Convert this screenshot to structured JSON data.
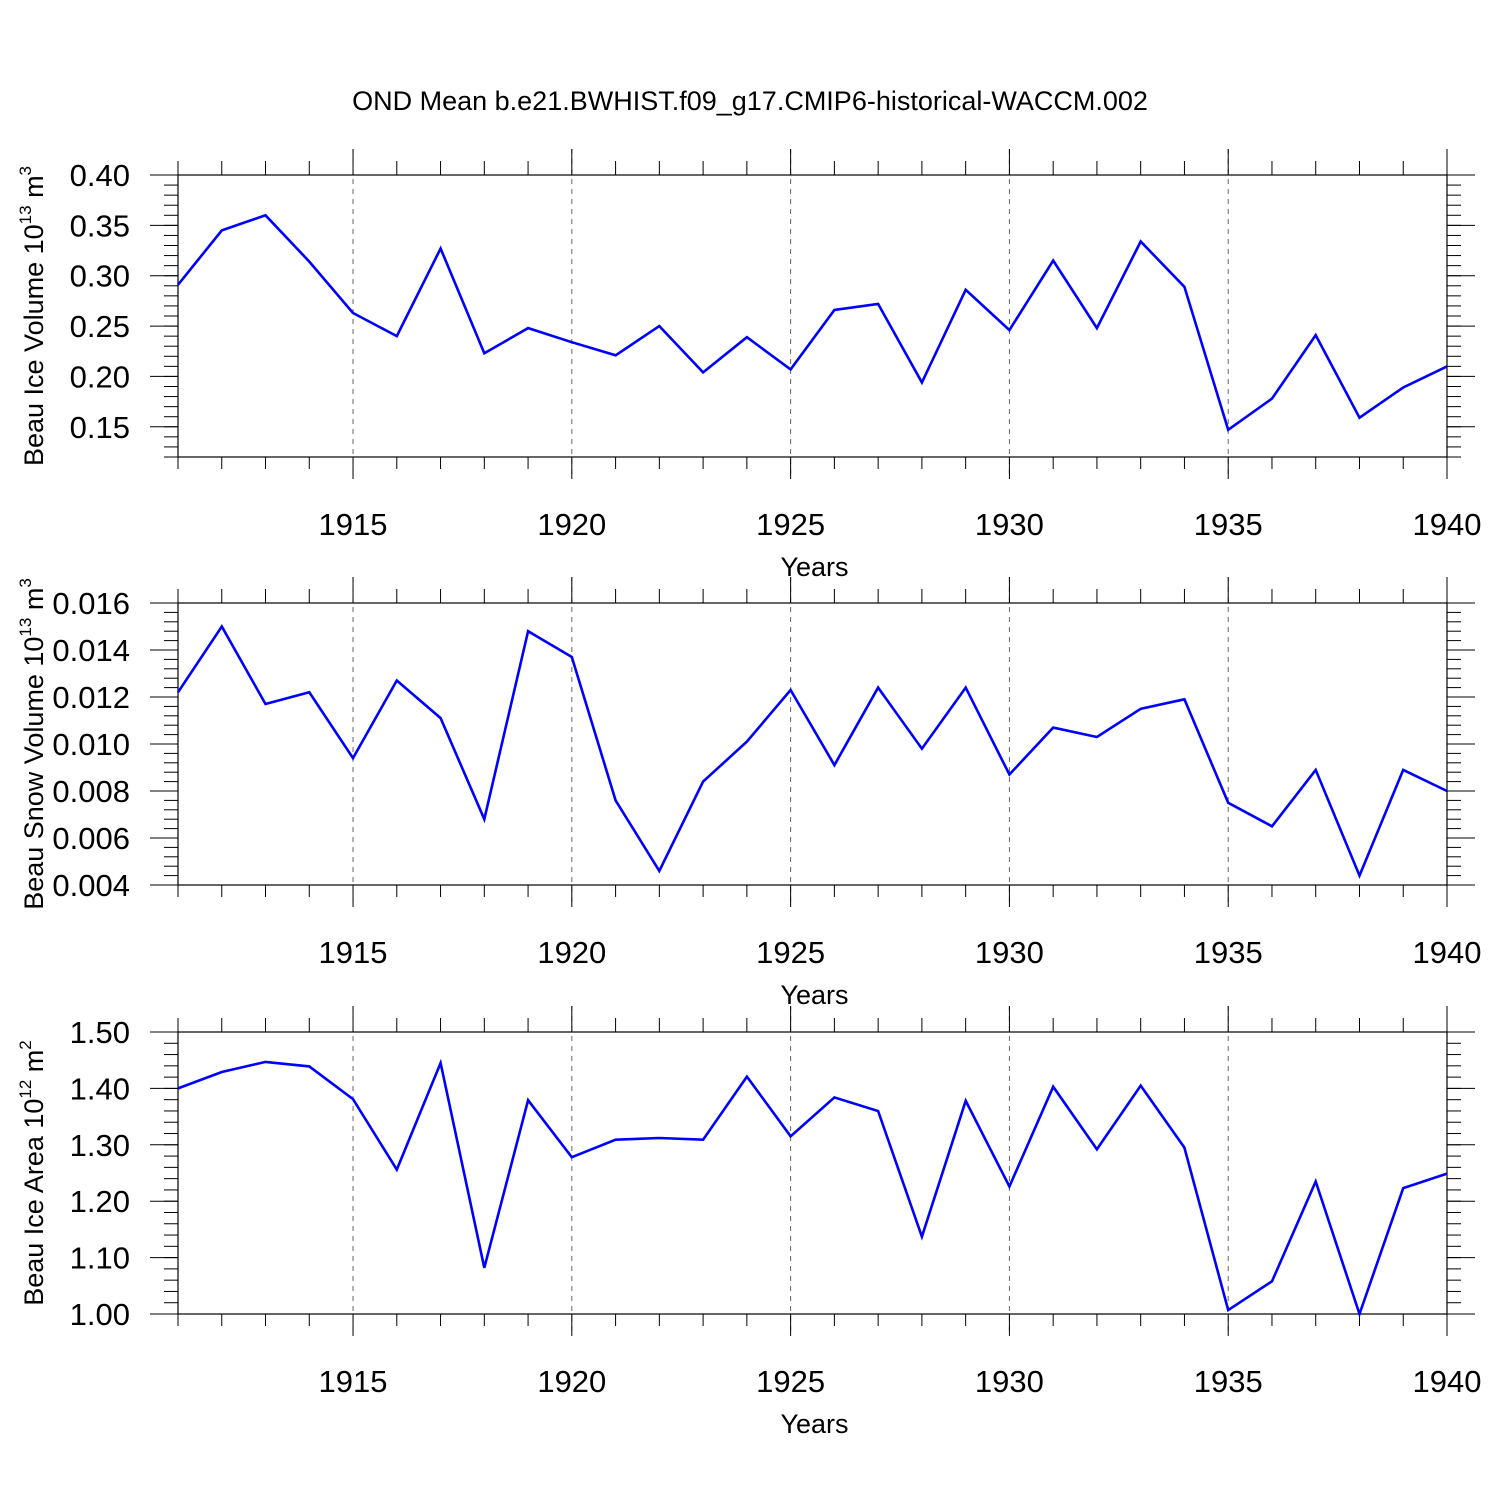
{
  "title": "OND Mean b.e21.BWHIST.f09_g17.CMIP6-historical-WACCM.002",
  "chart_data": [
    {
      "type": "line",
      "ylabel": {
        "base": "Beau Ice Volume 10",
        "exp": "13",
        "unit": " m",
        "unit_exp": "3"
      },
      "xlabel": "Years",
      "xlim": [
        1911,
        1940
      ],
      "ylim": [
        0.12,
        0.4
      ],
      "yticks": [
        "0.15",
        "0.20",
        "0.25",
        "0.30",
        "0.35",
        "0.40"
      ],
      "xticks": [
        "1915",
        "1920",
        "1925",
        "1930",
        "1935",
        "1940"
      ],
      "x": [
        1911,
        1912,
        1913,
        1914,
        1915,
        1916,
        1917,
        1918,
        1919,
        1920,
        1921,
        1922,
        1923,
        1924,
        1925,
        1926,
        1927,
        1928,
        1929,
        1930,
        1931,
        1932,
        1933,
        1934,
        1935,
        1936,
        1937,
        1938,
        1939,
        1940
      ],
      "series": [
        {
          "values": [
            0.291,
            0.345,
            0.36,
            0.314,
            0.263,
            0.24,
            0.327,
            0.223,
            0.248,
            0.234,
            0.221,
            0.25,
            0.204,
            0.239,
            0.207,
            0.266,
            0.272,
            0.194,
            0.286,
            0.246,
            0.315,
            0.248,
            0.334,
            0.289,
            0.147,
            0.178,
            0.241,
            0.159,
            0.189,
            0.21
          ],
          "color": "#0000ff"
        }
      ]
    },
    {
      "type": "line",
      "ylabel": {
        "base": "Beau Snow Volume 10",
        "exp": "13",
        "unit": " m",
        "unit_exp": "3"
      },
      "xlabel": "Years",
      "xlim": [
        1911,
        1940
      ],
      "ylim": [
        0.004,
        0.016
      ],
      "yticks": [
        "0.004",
        "0.006",
        "0.008",
        "0.010",
        "0.012",
        "0.014",
        "0.016"
      ],
      "xticks": [
        "1915",
        "1920",
        "1925",
        "1930",
        "1935",
        "1940"
      ],
      "x": [
        1911,
        1912,
        1913,
        1914,
        1915,
        1916,
        1917,
        1918,
        1919,
        1920,
        1921,
        1922,
        1923,
        1924,
        1925,
        1926,
        1927,
        1928,
        1929,
        1930,
        1931,
        1932,
        1933,
        1934,
        1935,
        1936,
        1937,
        1938,
        1939,
        1940
      ],
      "series": [
        {
          "values": [
            0.0122,
            0.015,
            0.0117,
            0.0122,
            0.0094,
            0.0127,
            0.0111,
            0.0068,
            0.0148,
            0.0137,
            0.0076,
            0.0046,
            0.0084,
            0.0101,
            0.0123,
            0.0091,
            0.0124,
            0.0098,
            0.0124,
            0.0087,
            0.0107,
            0.0103,
            0.0115,
            0.0119,
            0.0075,
            0.0065,
            0.0089,
            0.0044,
            0.0089,
            0.008
          ],
          "color": "#0000ff"
        }
      ]
    },
    {
      "type": "line",
      "ylabel": {
        "base": "Beau Ice Area 10",
        "exp": "12",
        "unit": " m",
        "unit_exp": "2"
      },
      "xlabel": "Years",
      "xlim": [
        1911,
        1940
      ],
      "ylim": [
        1.0,
        1.5
      ],
      "yticks": [
        "1.00",
        "1.10",
        "1.20",
        "1.30",
        "1.40",
        "1.50"
      ],
      "xticks": [
        "1915",
        "1920",
        "1925",
        "1930",
        "1935",
        "1940"
      ],
      "x": [
        1911,
        1912,
        1913,
        1914,
        1915,
        1916,
        1917,
        1918,
        1919,
        1920,
        1921,
        1922,
        1923,
        1924,
        1925,
        1926,
        1927,
        1928,
        1929,
        1930,
        1931,
        1932,
        1933,
        1934,
        1935,
        1936,
        1937,
        1938,
        1939,
        1940
      ],
      "series": [
        {
          "values": [
            1.4,
            1.429,
            1.447,
            1.439,
            1.381,
            1.256,
            1.445,
            1.082,
            1.379,
            1.278,
            1.309,
            1.312,
            1.309,
            1.421,
            1.315,
            1.384,
            1.36,
            1.137,
            1.378,
            1.226,
            1.403,
            1.292,
            1.405,
            1.295,
            1.007,
            1.058,
            1.235,
            1.0,
            1.223,
            1.249
          ],
          "color": "#0000ff"
        }
      ]
    }
  ]
}
